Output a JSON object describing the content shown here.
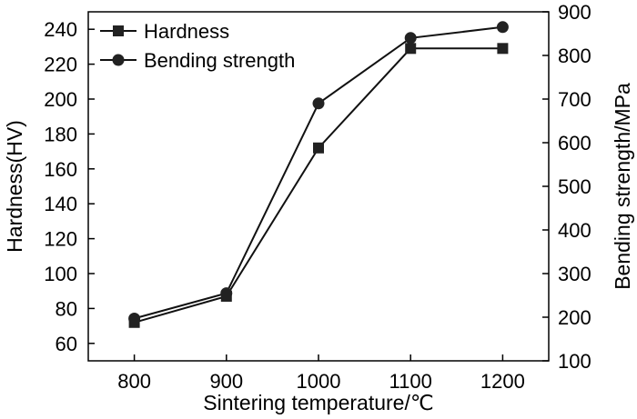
{
  "chart_data": {
    "type": "line",
    "x": [
      800,
      900,
      1000,
      1100,
      1200
    ],
    "xlabel": "Sintering temperature/℃",
    "ylabel": "Hardness(HV)",
    "y2label": "Bending strength/MPa",
    "xlim": [
      750,
      1250
    ],
    "ylim": [
      50,
      250
    ],
    "y2lim": [
      100,
      900
    ],
    "xticks": [
      800,
      900,
      1000,
      1100,
      1200
    ],
    "yticks": [
      60,
      80,
      100,
      120,
      140,
      160,
      180,
      200,
      220,
      240
    ],
    "y2ticks": [
      100,
      200,
      300,
      400,
      500,
      600,
      700,
      800,
      900
    ],
    "legend_position": "top-left",
    "grid": false,
    "series": [
      {
        "name": "Hardness",
        "axis": "left",
        "marker": "square",
        "values": [
          72,
          87,
          172,
          229,
          229
        ]
      },
      {
        "name": "Bending strength",
        "axis": "right",
        "marker": "circle",
        "values": [
          197,
          255,
          690,
          840,
          865
        ]
      }
    ]
  }
}
